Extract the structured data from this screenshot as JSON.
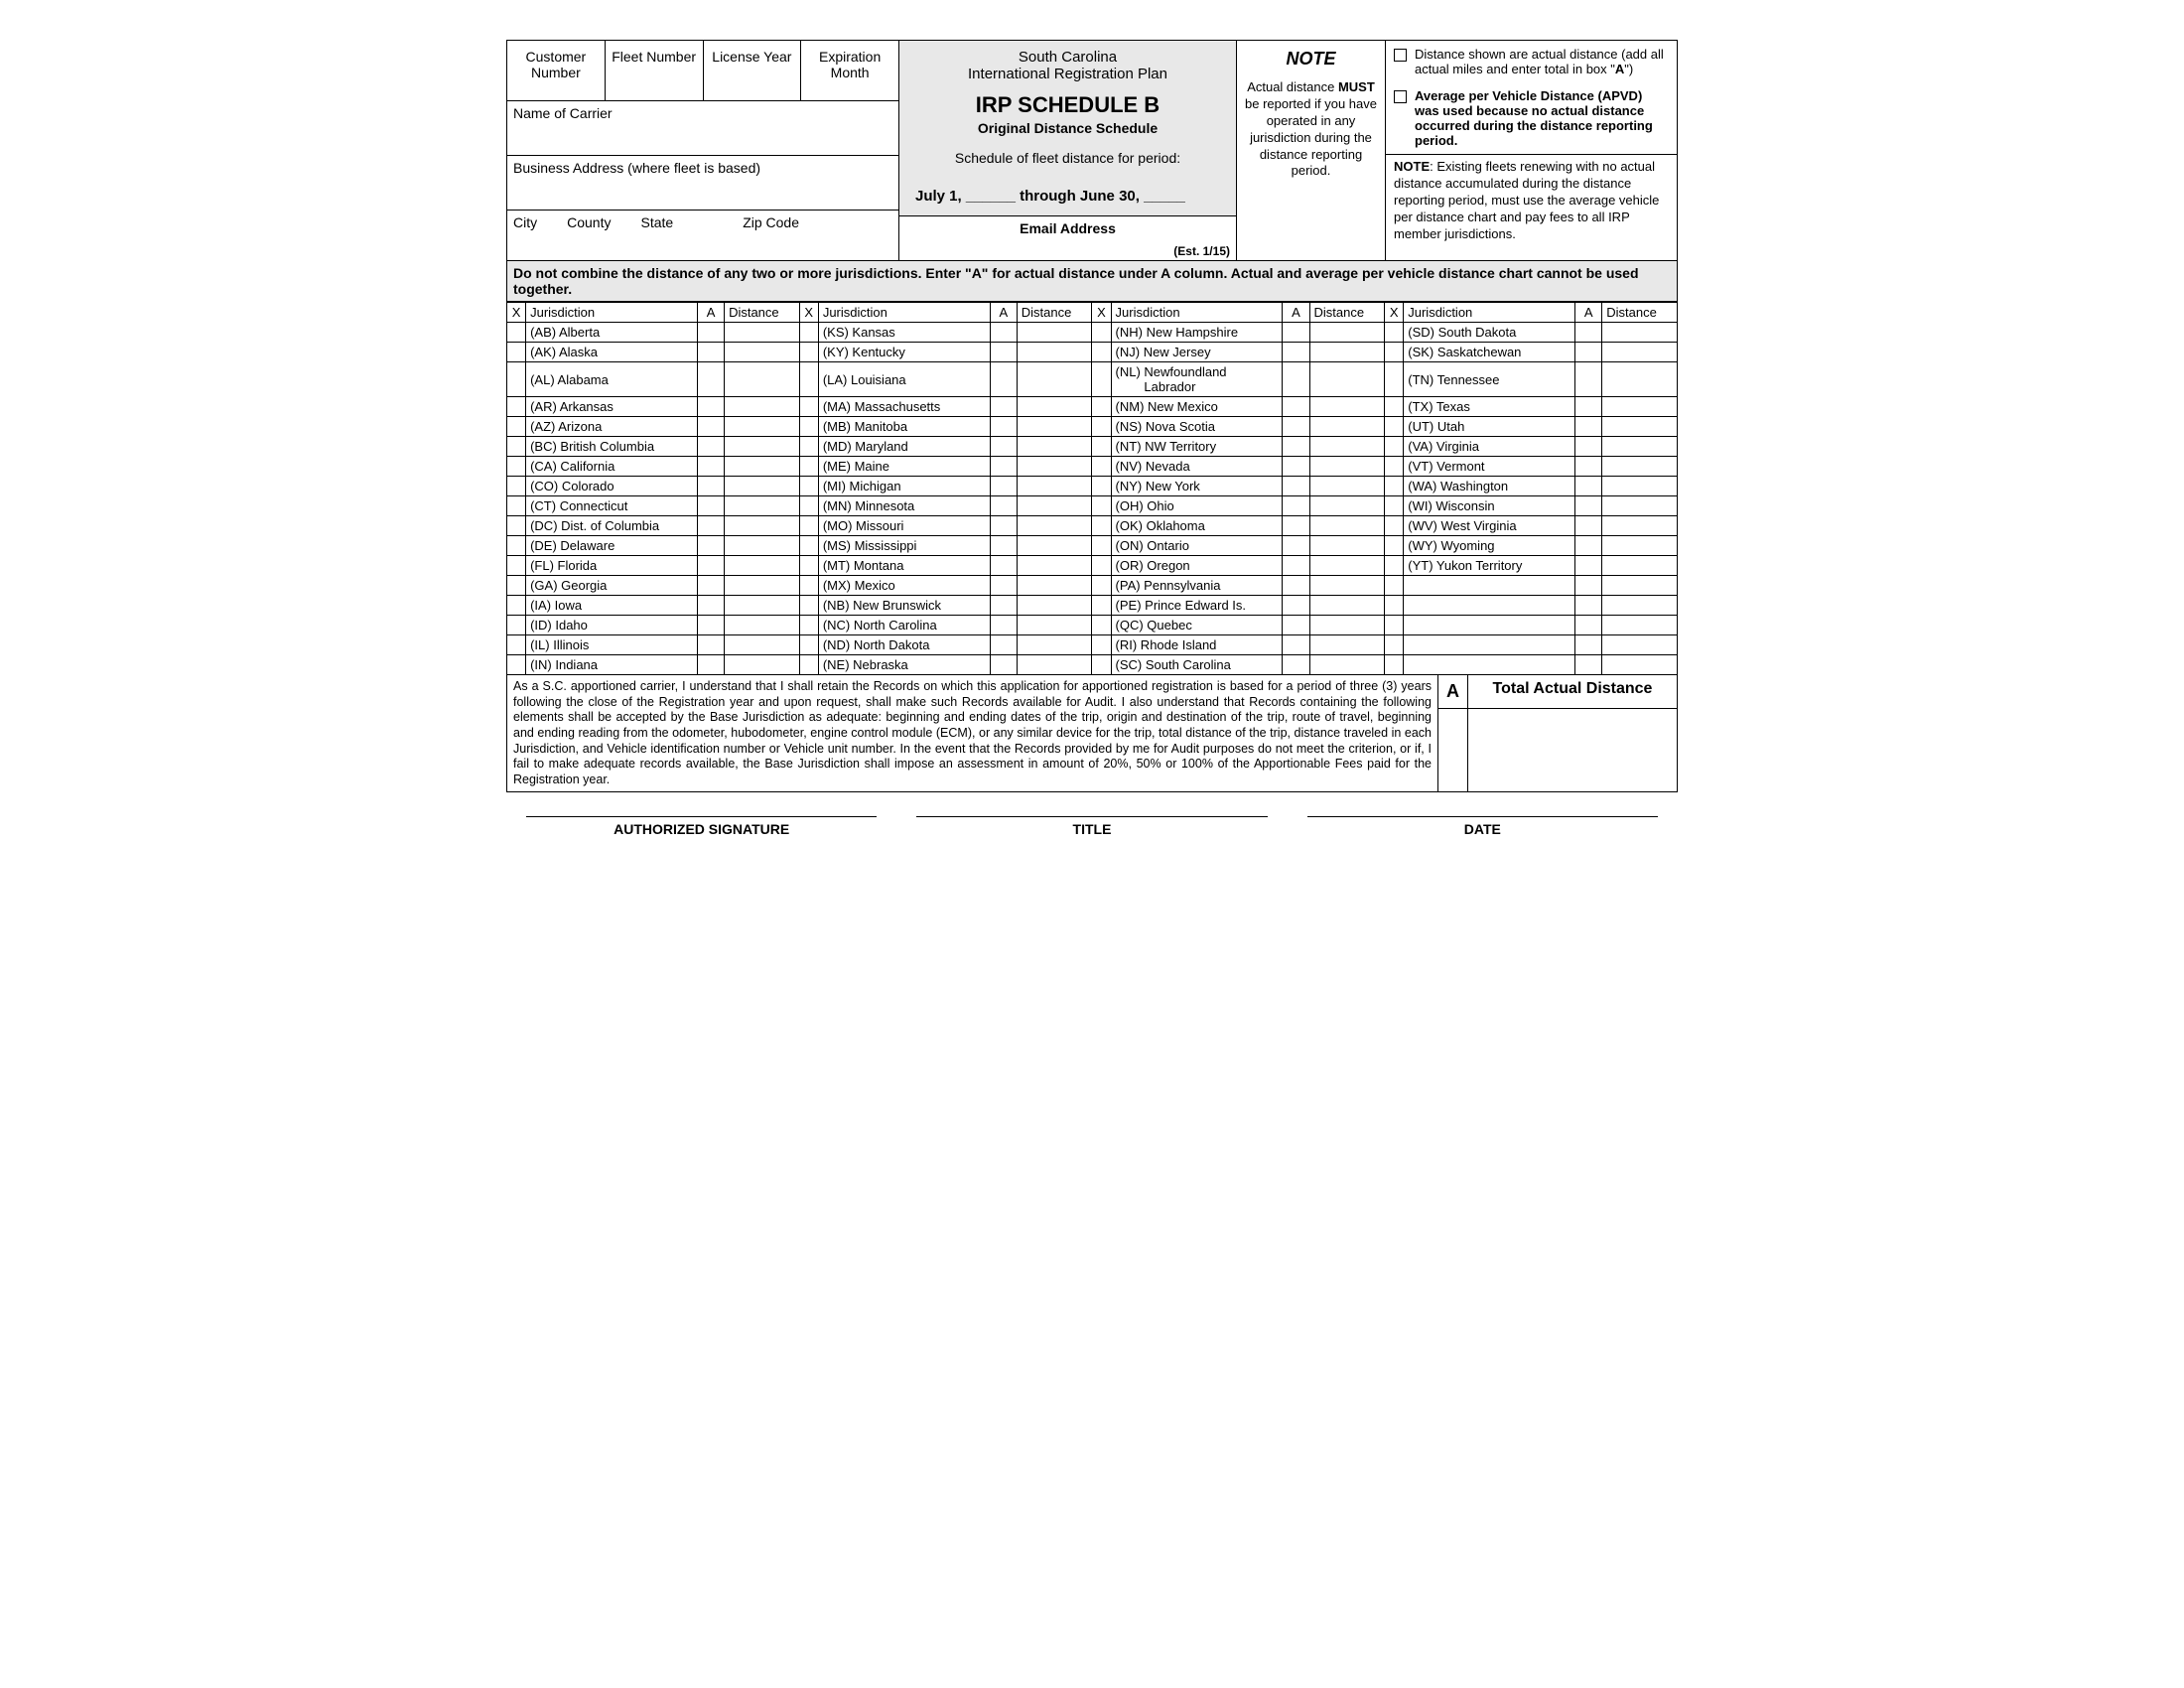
{
  "header": {
    "customer_number": "Customer Number",
    "fleet_number": "Fleet Number",
    "license_year": "License Year",
    "expiration_month": "Expiration Month"
  },
  "carrier": {
    "name_label": "Name of Carrier",
    "address_label": "Business Address (where fleet is based)",
    "city": "City",
    "county": "County",
    "state": "State",
    "zip": "Zip Code"
  },
  "center": {
    "state": "South Carolina",
    "plan": "International Registration Plan",
    "schedule": "IRP SCHEDULE B",
    "subtitle": "Original Distance Schedule",
    "period_label": "Schedule of fleet distance for period:",
    "period_dates": "July 1, ______  through June 30, _____",
    "email_label": "Email Address",
    "est": "(Est. 1/15)"
  },
  "note_col": {
    "title": "NOTE",
    "text": "Actual distance <b>MUST</b> be reported if you have operated in any jurisdiction during the distance reporting period."
  },
  "right": {
    "check1": "Distance shown are actual distance (add all actual miles and enter total in box \"<b>A</b>\")",
    "check2": "<b>Average per Vehicle Distance (APVD) was used because no actual distance occurred during the distance reporting period.</b>",
    "note": "<b>NOTE</b>: Existing fleets renewing with no actual distance accumulated during the distance reporting period, must use the average vehicle per distance chart and pay fees to all IRP member jurisdictions."
  },
  "instruction": "Do not combine the distance of any two or more jurisdictions.  Enter \"A\" for actual distance under A column. Actual and average per vehicle distance chart cannot be used together.",
  "table_headers": {
    "x": "X",
    "jurisdiction": "Jurisdiction",
    "a": "A",
    "distance": "Distance"
  },
  "col1": [
    "(AB) Alberta",
    "(AK) Alaska",
    "(AL) Alabama",
    "(AR) Arkansas",
    "(AZ) Arizona",
    "(BC) British Columbia",
    "(CA) California",
    "(CO) Colorado",
    "(CT) Connecticut",
    "(DC) Dist. of Columbia",
    "(DE) Delaware",
    "(FL) Florida",
    "(GA) Georgia",
    "(IA) Iowa",
    "(ID) Idaho",
    "(IL) Illinois",
    "(IN) Indiana"
  ],
  "col2": [
    "(KS) Kansas",
    "(KY) Kentucky",
    "(LA) Louisiana",
    "(MA) Massachusetts",
    "(MB) Manitoba",
    "(MD) Maryland",
    "(ME) Maine",
    "(MI) Michigan",
    "(MN) Minnesota",
    "(MO) Missouri",
    "(MS) Mississippi",
    "(MT) Montana",
    "(MX) Mexico",
    "(NB) New Brunswick",
    "(NC) North Carolina",
    "(ND) North Dakota",
    "(NE) Nebraska"
  ],
  "col3": [
    "(NH) New Hampshire",
    "(NJ) New Jersey",
    "(NL) Newfoundland Labrador",
    "(NM) New Mexico",
    "(NS) Nova Scotia",
    "(NT) NW Territory",
    "(NV) Nevada",
    "(NY) New York",
    "(OH) Ohio",
    "(OK) Oklahoma",
    "(ON) Ontario",
    "(OR) Oregon",
    "(PA) Pennsylvania",
    "(PE) Prince Edward Is.",
    "(QC) Quebec",
    "(RI) Rhode Island",
    "(SC) South Carolina"
  ],
  "col4": [
    "(SD) South Dakota",
    "(SK) Saskatchewan",
    "(TN) Tennessee",
    "(TX) Texas",
    "(UT) Utah",
    "(VA) Virginia",
    "(VT) Vermont",
    "(WA) Washington",
    "(WI) Wisconsin",
    "(WV) West Virginia",
    "(WY) Wyoming",
    "(YT) Yukon Territory",
    "",
    "",
    "",
    "",
    ""
  ],
  "legal": "As a S.C. apportioned carrier, I understand that I shall retain the Records on which this application for apportioned registration is based for a period of three (3) years following the close of the Registration year and upon request, shall make such Records available for Audit. I also understand that Records containing the following elements shall be accepted by the Base Jurisdiction as adequate: beginning and ending dates of the trip, origin and destination of the trip, route of travel, beginning and ending reading from the odometer, hubodometer, engine control module (ECM), or any similar device for the trip, total distance of the trip, distance traveled in each Jurisdiction, and Vehicle identification number or Vehicle unit number. In the event that the Records provided by me for Audit purposes do not meet the criterion, or if, I fail to make adequate records available, the Base Jurisdiction shall impose an assessment in amount of 20%, 50% or 100% of the Apportionable Fees paid for the Registration year.",
  "total": {
    "a": "A",
    "label": "Total Actual Distance"
  },
  "sig": {
    "signature": "AUTHORIZED SIGNATURE",
    "title": "TITLE",
    "date": "DATE"
  }
}
